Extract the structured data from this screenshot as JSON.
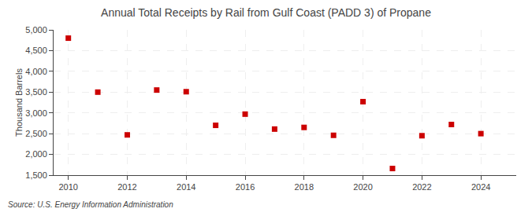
{
  "chart_data": {
    "type": "scatter",
    "title": "Annual Total Receipts by Rail from Gulf Coast (PADD 3) of Propane",
    "ylabel": "Thousand Barrels",
    "annotations": [
      "Source: U.S. Energy Information Administration"
    ],
    "x": [
      2010,
      2011,
      2012,
      2013,
      2014,
      2015,
      2016,
      2017,
      2018,
      2019,
      2020,
      2021,
      2022,
      2023,
      2024
    ],
    "values": [
      4800,
      3500,
      2470,
      3550,
      3510,
      2700,
      2970,
      2610,
      2650,
      2460,
      3270,
      1660,
      2450,
      2720,
      2500
    ],
    "color": "#cc0000",
    "marker": "square",
    "xlim": [
      2009.5,
      2025.2
    ],
    "xticks": [
      2010,
      2012,
      2014,
      2016,
      2018,
      2020,
      2022,
      2024
    ],
    "ylim": [
      1500,
      5000
    ],
    "yticks": [
      {
        "value": 1500,
        "label": "1,500"
      },
      {
        "value": 2000,
        "label": "2,000"
      },
      {
        "value": 2500,
        "label": "2,500"
      },
      {
        "value": 3000,
        "label": "3,000"
      },
      {
        "value": 3500,
        "label": "3,500"
      },
      {
        "value": 4000,
        "label": "4,000"
      },
      {
        "value": 4500,
        "label": "4,500"
      },
      {
        "value": 5000,
        "label": "5,000"
      }
    ],
    "grid": true
  }
}
